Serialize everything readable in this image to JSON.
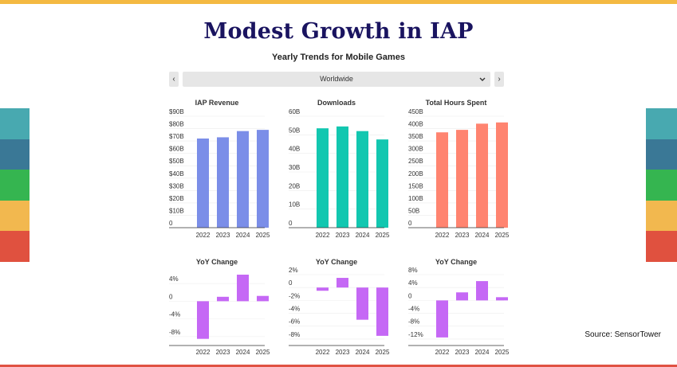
{
  "title": "Modest Growth in IAP",
  "subtitle": "Yearly Trends for Mobile Games",
  "selector": {
    "prev_label": "‹",
    "next_label": "›",
    "value": "Worldwide",
    "chevron_icon": "chevron-down-icon"
  },
  "source": "Source: SensorTower",
  "colors": {
    "top_bar": "#f4b942",
    "bottom_bar": "#e05243",
    "stripes": [
      "#48a9b0",
      "#3a7896",
      "#35b550",
      "#f2b84f",
      "#e0513f"
    ],
    "revenue": "#7b8ee8",
    "downloads": "#12c7b0",
    "hours": "#ff8470",
    "yoy": "#c568f5"
  },
  "chart_data": [
    {
      "type": "bar",
      "title": "IAP Revenue",
      "categories": [
        "2022",
        "2023",
        "2024",
        "2025"
      ],
      "values": [
        72,
        73,
        78,
        79
      ],
      "ylim": [
        0,
        90
      ],
      "yticks": [
        "0",
        "$10B",
        "$20B",
        "$30B",
        "$40B",
        "$50B",
        "$60B",
        "$70B",
        "$80B",
        "$90B"
      ],
      "ytick_values": [
        0,
        10,
        20,
        30,
        40,
        50,
        60,
        70,
        80,
        90
      ],
      "grid": true
    },
    {
      "type": "bar",
      "title": "Downloads",
      "categories": [
        "2022",
        "2023",
        "2024",
        "2025"
      ],
      "values": [
        53.5,
        54.5,
        52,
        47.5
      ],
      "ylim": [
        0,
        60
      ],
      "yticks": [
        "0",
        "10B",
        "20B",
        "30B",
        "40B",
        "50B",
        "60B"
      ],
      "ytick_values": [
        0,
        10,
        20,
        30,
        40,
        50,
        60
      ],
      "grid": true
    },
    {
      "type": "bar",
      "title": "Total Hours Spent",
      "categories": [
        "2022",
        "2023",
        "2024",
        "2025"
      ],
      "values": [
        385,
        395,
        420,
        425
      ],
      "ylim": [
        0,
        450
      ],
      "yticks": [
        "0",
        "50B",
        "100B",
        "150B",
        "200B",
        "250B",
        "300B",
        "350B",
        "400B",
        "450B"
      ],
      "ytick_values": [
        0,
        50,
        100,
        150,
        200,
        250,
        300,
        350,
        400,
        450
      ],
      "grid": true
    },
    {
      "type": "bar",
      "title": "YoY Change",
      "categories": [
        "2022",
        "2023",
        "2024",
        "2025"
      ],
      "values": [
        -8.5,
        1,
        6,
        1.2
      ],
      "ylim": [
        -10,
        6
      ],
      "yticks": [
        "4%",
        "0",
        "-4%",
        "-8%"
      ],
      "ytick_values": [
        4,
        0,
        -4,
        -8
      ],
      "grid": true
    },
    {
      "type": "bar",
      "title": "YoY Change",
      "categories": [
        "2022",
        "2023",
        "2024",
        "2025"
      ],
      "values": [
        -0.5,
        1.5,
        -5,
        -7.5
      ],
      "ylim": [
        -9,
        2
      ],
      "yticks": [
        "2%",
        "0",
        "-2%",
        "-4%",
        "-6%",
        "-8%"
      ],
      "ytick_values": [
        2,
        0,
        -2,
        -4,
        -6,
        -8
      ],
      "grid": true
    },
    {
      "type": "bar",
      "title": "YoY Change",
      "categories": [
        "2022",
        "2023",
        "2024",
        "2025"
      ],
      "values": [
        -11.5,
        2.5,
        6,
        1
      ],
      "ylim": [
        -14,
        8
      ],
      "yticks": [
        "8%",
        "4%",
        "0",
        "-4%",
        "-8%",
        "-12%"
      ],
      "ytick_values": [
        8,
        4,
        0,
        -4,
        -8,
        -12
      ],
      "grid": true
    }
  ]
}
